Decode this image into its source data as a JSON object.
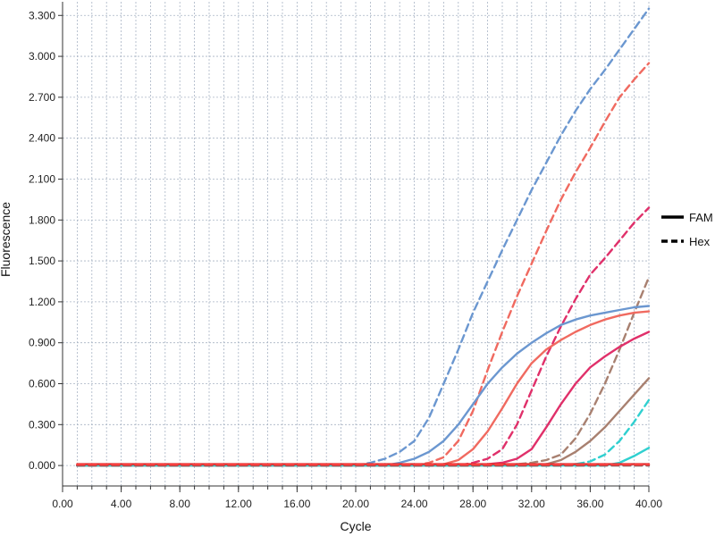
{
  "chart_data": {
    "type": "line",
    "xlabel": "Cycle",
    "ylabel": "Fluorescence",
    "xlim": [
      0,
      40
    ],
    "ylim": [
      -0.15,
      3.4
    ],
    "x_ticks": [
      "0.00",
      "4.00",
      "8.00",
      "12.00",
      "16.00",
      "20.00",
      "24.00",
      "28.00",
      "32.00",
      "36.00",
      "40.00"
    ],
    "x_tick_values": [
      0,
      4,
      8,
      12,
      16,
      20,
      24,
      28,
      32,
      36,
      40
    ],
    "y_ticks": [
      "0.000",
      "0.300",
      "0.600",
      "0.900",
      "1.200",
      "1.500",
      "1.800",
      "2.100",
      "2.400",
      "2.700",
      "3.000",
      "3.300"
    ],
    "y_tick_values": [
      0,
      0.3,
      0.6,
      0.9,
      1.2,
      1.5,
      1.8,
      2.1,
      2.4,
      2.7,
      3.0,
      3.3
    ],
    "grid": true,
    "legend_position": "right",
    "legend": [
      {
        "label": "FAM",
        "style": "solid"
      },
      {
        "label": "Hex",
        "style": "dashed"
      }
    ],
    "series": [
      {
        "color": "#6b97d0",
        "style": "dashed",
        "points": [
          [
            1,
            0
          ],
          [
            20,
            0
          ],
          [
            21,
            0.02
          ],
          [
            22,
            0.05
          ],
          [
            23,
            0.1
          ],
          [
            24,
            0.18
          ],
          [
            25,
            0.35
          ],
          [
            26,
            0.6
          ],
          [
            27,
            0.85
          ],
          [
            28,
            1.12
          ],
          [
            29,
            1.35
          ],
          [
            30,
            1.58
          ],
          [
            31,
            1.8
          ],
          [
            32,
            2.02
          ],
          [
            33,
            2.22
          ],
          [
            34,
            2.42
          ],
          [
            35,
            2.6
          ],
          [
            36,
            2.76
          ],
          [
            37,
            2.9
          ],
          [
            38,
            3.05
          ],
          [
            39,
            3.2
          ],
          [
            40,
            3.35
          ]
        ]
      },
      {
        "color": "#f06a60",
        "style": "dashed",
        "points": [
          [
            1,
            0
          ],
          [
            24,
            0
          ],
          [
            25,
            0.02
          ],
          [
            26,
            0.06
          ],
          [
            27,
            0.18
          ],
          [
            28,
            0.4
          ],
          [
            29,
            0.7
          ],
          [
            30,
            0.98
          ],
          [
            31,
            1.24
          ],
          [
            32,
            1.48
          ],
          [
            33,
            1.72
          ],
          [
            34,
            1.95
          ],
          [
            35,
            2.15
          ],
          [
            36,
            2.33
          ],
          [
            37,
            2.52
          ],
          [
            38,
            2.7
          ],
          [
            39,
            2.83
          ],
          [
            40,
            2.95
          ]
        ]
      },
      {
        "color": "#e0306a",
        "style": "dashed",
        "points": [
          [
            1,
            0
          ],
          [
            27,
            0
          ],
          [
            28,
            0.02
          ],
          [
            29,
            0.05
          ],
          [
            30,
            0.12
          ],
          [
            31,
            0.3
          ],
          [
            32,
            0.55
          ],
          [
            33,
            0.8
          ],
          [
            34,
            1.02
          ],
          [
            35,
            1.22
          ],
          [
            36,
            1.4
          ],
          [
            37,
            1.52
          ],
          [
            38,
            1.65
          ],
          [
            39,
            1.78
          ],
          [
            40,
            1.89
          ]
        ]
      },
      {
        "color": "#a88070",
        "style": "dashed",
        "points": [
          [
            1,
            0
          ],
          [
            30,
            0
          ],
          [
            31,
            0.01
          ],
          [
            32,
            0.02
          ],
          [
            33,
            0.04
          ],
          [
            34,
            0.08
          ],
          [
            35,
            0.2
          ],
          [
            36,
            0.38
          ],
          [
            37,
            0.6
          ],
          [
            38,
            0.85
          ],
          [
            39,
            1.12
          ],
          [
            40,
            1.38
          ]
        ]
      },
      {
        "color": "#30d0d0",
        "style": "dashed",
        "points": [
          [
            1,
            0
          ],
          [
            34,
            0
          ],
          [
            35,
            0.01
          ],
          [
            36,
            0.03
          ],
          [
            37,
            0.08
          ],
          [
            38,
            0.18
          ],
          [
            39,
            0.32
          ],
          [
            40,
            0.48
          ]
        ]
      },
      {
        "color": "#6b97d0",
        "style": "solid",
        "points": [
          [
            1,
            0
          ],
          [
            22,
            0
          ],
          [
            23,
            0.02
          ],
          [
            24,
            0.05
          ],
          [
            25,
            0.1
          ],
          [
            26,
            0.18
          ],
          [
            27,
            0.3
          ],
          [
            28,
            0.45
          ],
          [
            29,
            0.6
          ],
          [
            30,
            0.72
          ],
          [
            31,
            0.82
          ],
          [
            32,
            0.9
          ],
          [
            33,
            0.97
          ],
          [
            34,
            1.03
          ],
          [
            35,
            1.07
          ],
          [
            36,
            1.1
          ],
          [
            37,
            1.12
          ],
          [
            38,
            1.14
          ],
          [
            39,
            1.16
          ],
          [
            40,
            1.17
          ]
        ]
      },
      {
        "color": "#f06a60",
        "style": "solid",
        "points": [
          [
            1,
            0
          ],
          [
            25,
            0
          ],
          [
            26,
            0.01
          ],
          [
            27,
            0.04
          ],
          [
            28,
            0.12
          ],
          [
            29,
            0.25
          ],
          [
            30,
            0.42
          ],
          [
            31,
            0.6
          ],
          [
            32,
            0.75
          ],
          [
            33,
            0.85
          ],
          [
            34,
            0.92
          ],
          [
            35,
            0.98
          ],
          [
            36,
            1.03
          ],
          [
            37,
            1.07
          ],
          [
            38,
            1.1
          ],
          [
            39,
            1.12
          ],
          [
            40,
            1.13
          ]
        ]
      },
      {
        "color": "#e0306a",
        "style": "solid",
        "points": [
          [
            1,
            0
          ],
          [
            28,
            0
          ],
          [
            29,
            0.01
          ],
          [
            30,
            0.02
          ],
          [
            31,
            0.05
          ],
          [
            32,
            0.12
          ],
          [
            33,
            0.28
          ],
          [
            34,
            0.45
          ],
          [
            35,
            0.6
          ],
          [
            36,
            0.72
          ],
          [
            37,
            0.8
          ],
          [
            38,
            0.87
          ],
          [
            39,
            0.93
          ],
          [
            40,
            0.98
          ]
        ]
      },
      {
        "color": "#a88070",
        "style": "solid",
        "points": [
          [
            1,
            0
          ],
          [
            32,
            0
          ],
          [
            33,
            0.01
          ],
          [
            34,
            0.04
          ],
          [
            35,
            0.1
          ],
          [
            36,
            0.18
          ],
          [
            37,
            0.28
          ],
          [
            38,
            0.4
          ],
          [
            39,
            0.52
          ],
          [
            40,
            0.64
          ]
        ]
      },
      {
        "color": "#30d0d0",
        "style": "solid",
        "points": [
          [
            1,
            0
          ],
          [
            37,
            0
          ],
          [
            38,
            0.02
          ],
          [
            39,
            0.07
          ],
          [
            40,
            0.13
          ]
        ]
      },
      {
        "color": "#e03030",
        "style": "solid",
        "points": [
          [
            1,
            0.01
          ],
          [
            10,
            0.01
          ],
          [
            20,
            0.01
          ],
          [
            30,
            0.01
          ],
          [
            40,
            0.01
          ]
        ]
      },
      {
        "color": "#555555",
        "style": "dashed",
        "points": [
          [
            1,
            0
          ],
          [
            10,
            0
          ],
          [
            20,
            0
          ],
          [
            30,
            0
          ],
          [
            40,
            0
          ]
        ]
      },
      {
        "color": "#ff4040",
        "style": "dashed",
        "points": [
          [
            1,
            0.005
          ],
          [
            15,
            0.005
          ],
          [
            25,
            0.005
          ],
          [
            40,
            0.005
          ]
        ]
      }
    ]
  }
}
